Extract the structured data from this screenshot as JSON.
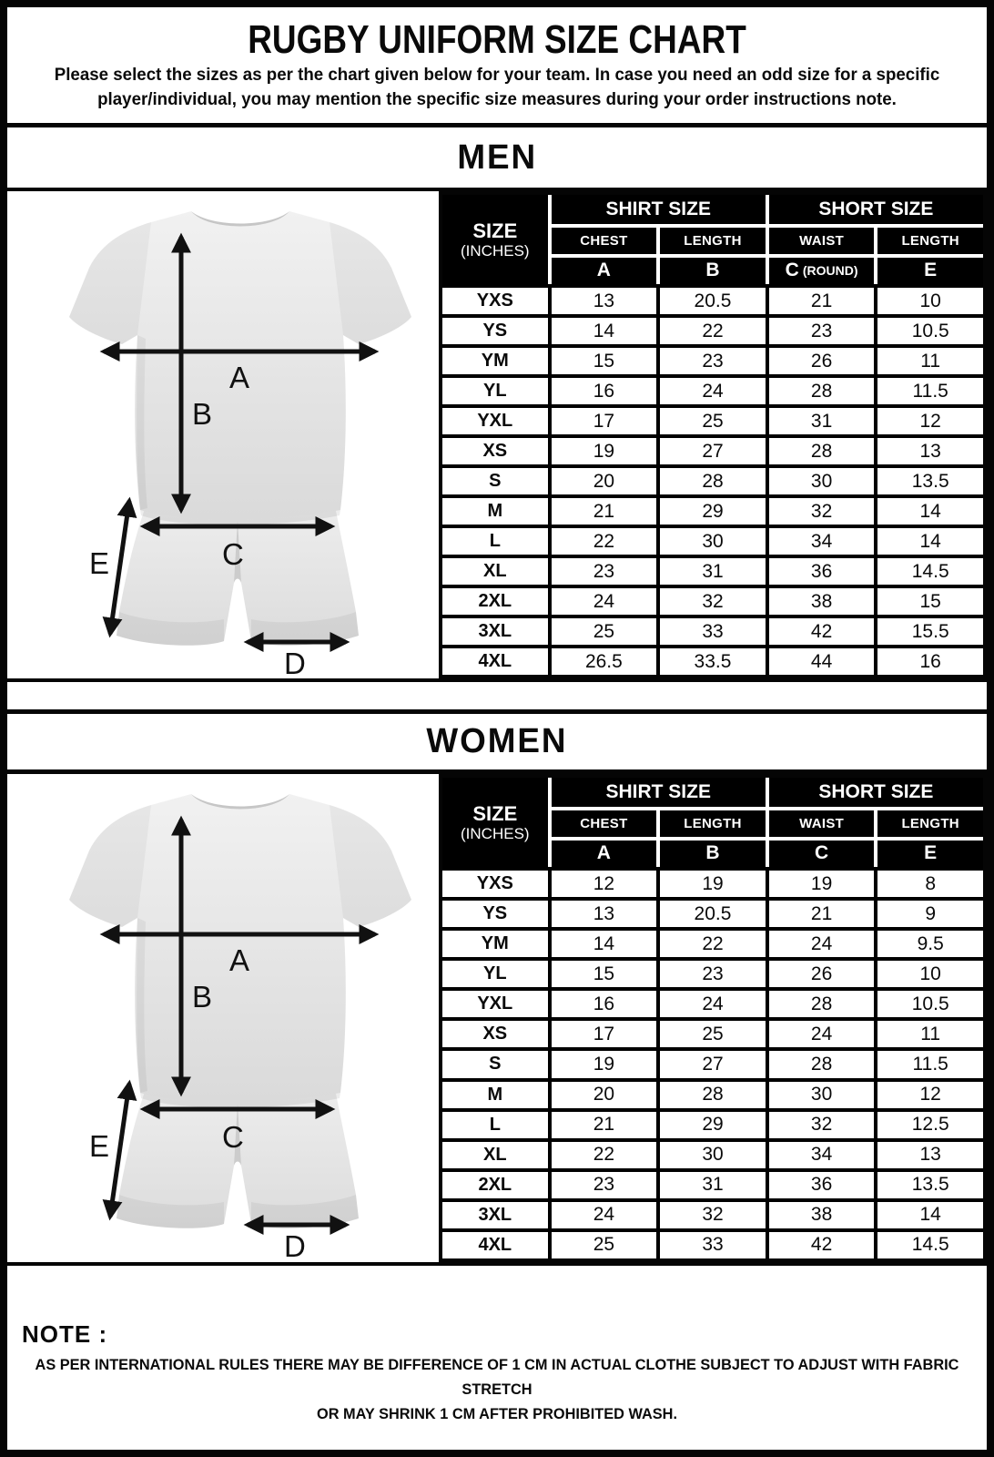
{
  "header": {
    "title": "RUGBY UNIFORM SIZE CHART",
    "subtitle_line1": "Please select the sizes as per the chart given below for your team. In case you need an odd size for a specific",
    "subtitle_line2": "player/individual, you may mention the specific size measures during your order instructions note."
  },
  "figure": {
    "labels": [
      "A",
      "B",
      "C",
      "D",
      "E"
    ]
  },
  "sections": [
    {
      "banner": "MEN",
      "table": {
        "size_header": "SIZE",
        "size_subheader": "(INCHES)",
        "shirt_group": "SHIRT SIZE",
        "short_group": "SHORT SIZE",
        "col_headers": [
          "CHEST",
          "LENGTH",
          "WAIST",
          "LENGTH"
        ],
        "letter_headers": [
          "A",
          "B",
          "C (ROUND)",
          "E"
        ],
        "rows": [
          [
            "YXS",
            "13",
            "20.5",
            "21",
            "10"
          ],
          [
            "YS",
            "14",
            "22",
            "23",
            "10.5"
          ],
          [
            "YM",
            "15",
            "23",
            "26",
            "11"
          ],
          [
            "YL",
            "16",
            "24",
            "28",
            "11.5"
          ],
          [
            "YXL",
            "17",
            "25",
            "31",
            "12"
          ],
          [
            "XS",
            "19",
            "27",
            "28",
            "13"
          ],
          [
            "S",
            "20",
            "28",
            "30",
            "13.5"
          ],
          [
            "M",
            "21",
            "29",
            "32",
            "14"
          ],
          [
            "L",
            "22",
            "30",
            "34",
            "14"
          ],
          [
            "XL",
            "23",
            "31",
            "36",
            "14.5"
          ],
          [
            "2XL",
            "24",
            "32",
            "38",
            "15"
          ],
          [
            "3XL",
            "25",
            "33",
            "42",
            "15.5"
          ],
          [
            "4XL",
            "26.5",
            "33.5",
            "44",
            "16"
          ]
        ]
      }
    },
    {
      "banner": "WOMEN",
      "table": {
        "size_header": "SIZE",
        "size_subheader": "(INCHES)",
        "shirt_group": "SHIRT SIZE",
        "short_group": "SHORT SIZE",
        "col_headers": [
          "CHEST",
          "LENGTH",
          "WAIST",
          "LENGTH"
        ],
        "letter_headers": [
          "A",
          "B",
          "C",
          "E"
        ],
        "rows": [
          [
            "YXS",
            "12",
            "19",
            "19",
            "8"
          ],
          [
            "YS",
            "13",
            "20.5",
            "21",
            "9"
          ],
          [
            "YM",
            "14",
            "22",
            "24",
            "9.5"
          ],
          [
            "YL",
            "15",
            "23",
            "26",
            "10"
          ],
          [
            "YXL",
            "16",
            "24",
            "28",
            "10.5"
          ],
          [
            "XS",
            "17",
            "25",
            "24",
            "11"
          ],
          [
            "S",
            "19",
            "27",
            "28",
            "11.5"
          ],
          [
            "M",
            "20",
            "28",
            "30",
            "12"
          ],
          [
            "L",
            "21",
            "29",
            "32",
            "12.5"
          ],
          [
            "XL",
            "22",
            "30",
            "34",
            "13"
          ],
          [
            "2XL",
            "23",
            "31",
            "36",
            "13.5"
          ],
          [
            "3XL",
            "24",
            "32",
            "38",
            "14"
          ],
          [
            "4XL",
            "25",
            "33",
            "42",
            "14.5"
          ]
        ]
      }
    }
  ],
  "note": {
    "label": "NOTE :",
    "line1": "AS PER INTERNATIONAL RULES THERE MAY BE DIFFERENCE OF 1 CM IN ACTUAL CLOTHE SUBJECT TO ADJUST WITH FABRIC STRETCH",
    "line2": "OR MAY SHRINK 1 CM AFTER PROHIBITED WASH."
  }
}
